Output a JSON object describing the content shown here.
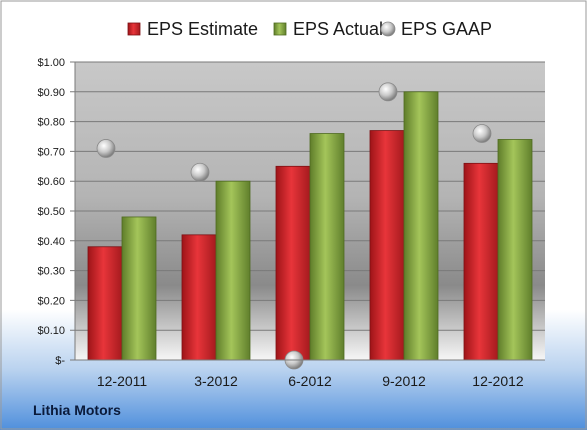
{
  "chart_data": {
    "type": "bar",
    "title": "",
    "xlabel": "",
    "ylabel": "",
    "categories": [
      "12-2011",
      "3-2012",
      "6-2012",
      "9-2012",
      "12-2012"
    ],
    "series": [
      {
        "name": "EPS Estimate",
        "kind": "bar",
        "color": "#d7262c",
        "values": [
          0.38,
          0.42,
          0.65,
          0.77,
          0.66
        ]
      },
      {
        "name": "EPS Actual",
        "kind": "bar",
        "color": "#8fb04a",
        "values": [
          0.48,
          0.6,
          0.76,
          0.9,
          0.74
        ]
      },
      {
        "name": "EPS GAAP",
        "kind": "marker",
        "color": "#bfbfbf",
        "values": [
          0.71,
          0.63,
          0.0,
          0.9,
          0.76
        ]
      }
    ],
    "ylim": [
      0,
      1.0
    ],
    "yticks": [
      0,
      0.1,
      0.2,
      0.3,
      0.4,
      0.5,
      0.6,
      0.7,
      0.8,
      0.9,
      1.0
    ],
    "ytick_labels": [
      "$-",
      "$0.10",
      "$0.20",
      "$0.30",
      "$0.40",
      "$0.50",
      "$0.60",
      "$0.70",
      "$0.80",
      "$0.90",
      "$1.00"
    ],
    "grid": true,
    "legend_position": "top"
  },
  "footer": {
    "company": "Lithia Motors"
  }
}
